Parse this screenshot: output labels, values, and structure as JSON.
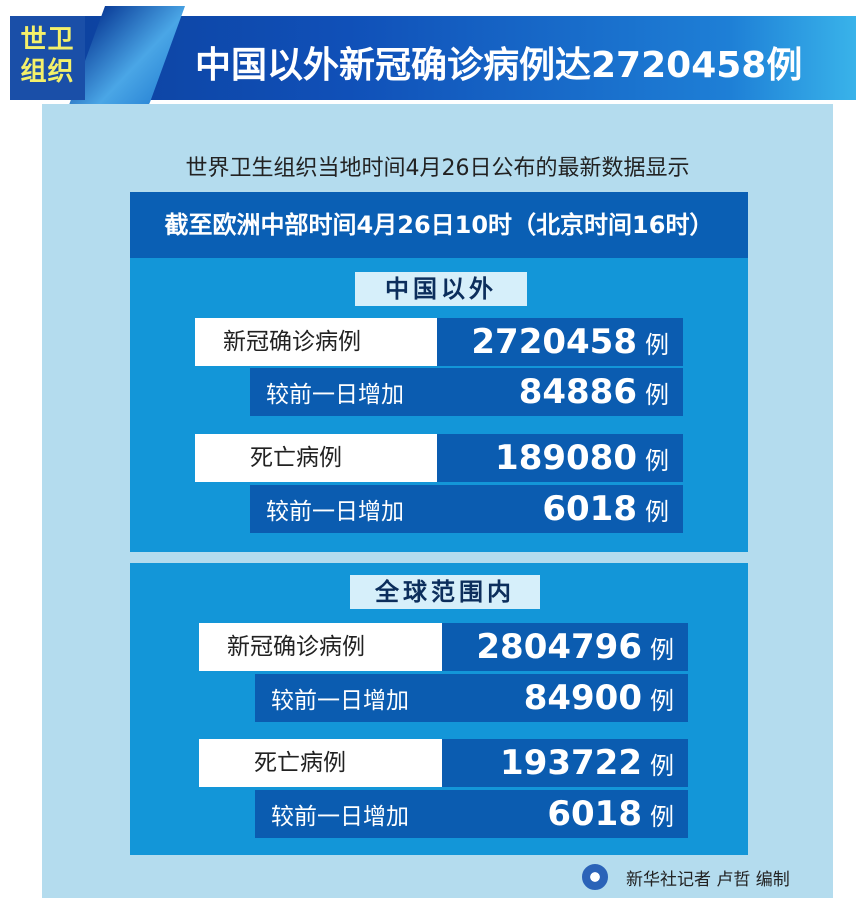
{
  "header": {
    "tag_line1": "世卫",
    "tag_line2": "组织",
    "title": "中国以外新冠确诊病例达2720458例"
  },
  "subtitle": "世界卫生组织当地时间4月26日公布的最新数据显示",
  "timestamp_banner": "截至欧洲中部时间4月26日10时（北京时间16时）",
  "sections": [
    {
      "label": "中国以外",
      "rows": [
        {
          "label": "新冠确诊病例",
          "value": "2720458",
          "unit": "例",
          "increase_label": "较前一日增加",
          "increase": "84886",
          "increase_unit": "例"
        },
        {
          "label": "死亡病例",
          "value": "189080",
          "unit": "例",
          "increase_label": "较前一日增加",
          "increase": "6018",
          "increase_unit": "例"
        }
      ]
    },
    {
      "label": "全球范围内",
      "rows": [
        {
          "label": "新冠确诊病例",
          "value": "2804796",
          "unit": "例",
          "increase_label": "较前一日增加",
          "increase": "84900",
          "increase_unit": "例"
        },
        {
          "label": "死亡病例",
          "value": "193722",
          "unit": "例",
          "increase_label": "较前一日增加",
          "increase": "6018",
          "increase_unit": "例"
        }
      ]
    }
  ],
  "footer": {
    "credit": "新华社记者 卢哲 编制",
    "logo_icon": "xinhua-logo-icon"
  },
  "colors": {
    "dark_blue": "#0b5cb0",
    "mid_blue": "#1396d8",
    "panel": "#b4dcee",
    "tag_yellow": "#f4f06a"
  }
}
